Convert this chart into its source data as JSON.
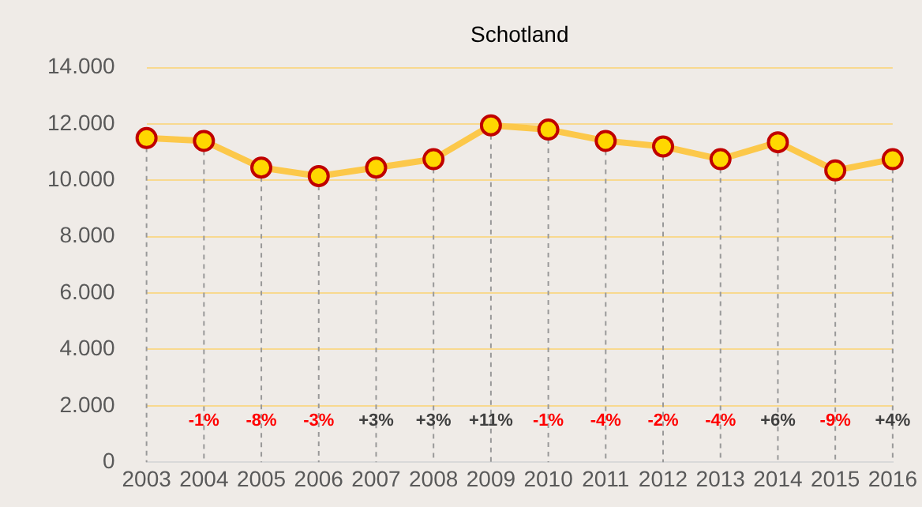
{
  "chart_data": {
    "type": "line",
    "title": "Schotland",
    "categories": [
      "2003",
      "2004",
      "2005",
      "2006",
      "2007",
      "2008",
      "2009",
      "2010",
      "2011",
      "2012",
      "2013",
      "2014",
      "2015",
      "2016"
    ],
    "series": [
      {
        "color": "#fcc84a",
        "values": [
          11500,
          11400,
          10450,
          10150,
          10450,
          10750,
          11950,
          11800,
          11400,
          11200,
          10750,
          11350,
          10350,
          10750
        ]
      }
    ],
    "ylim": [
      0,
      14000
    ],
    "yticks": [
      {
        "value": 0,
        "label": "0"
      },
      {
        "value": 2000,
        "label": "2.000"
      },
      {
        "value": 4000,
        "label": "4.000"
      },
      {
        "value": 6000,
        "label": "6.000"
      },
      {
        "value": 8000,
        "label": "8.000"
      },
      {
        "value": 10000,
        "label": "10.000"
      },
      {
        "value": 12000,
        "label": "12.000"
      },
      {
        "value": 14000,
        "label": "14.000"
      }
    ],
    "grid": true,
    "marker": "circle",
    "legend": false,
    "annotations": [
      "-1%",
      "-8%",
      "-3%",
      "+3%",
      "+3%",
      "+11%",
      "-1%",
      "-4%",
      "-2%",
      "-4%",
      "+6%",
      "-9%",
      "+4%"
    ]
  }
}
